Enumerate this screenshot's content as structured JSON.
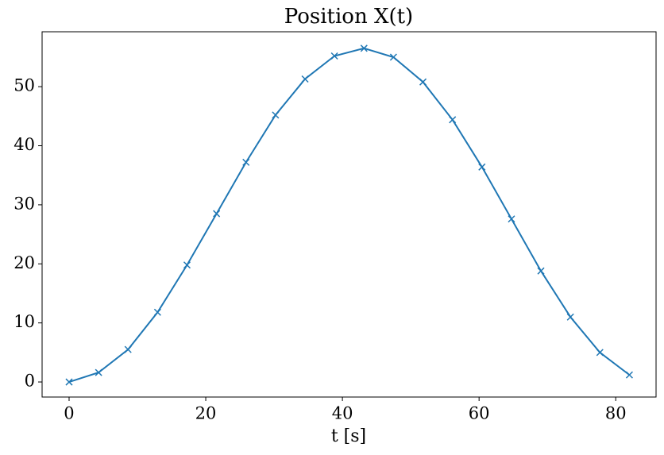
{
  "chart_data": {
    "type": "line",
    "title": "Position X(t)",
    "xlabel": "t [s]",
    "x": [
      0,
      4.32,
      8.63,
      12.95,
      17.26,
      21.58,
      25.89,
      30.21,
      34.53,
      38.84,
      43.16,
      47.47,
      51.79,
      56.11,
      60.42,
      64.74,
      69.05,
      73.37,
      77.68,
      82
    ],
    "series": [
      {
        "color": "#1f77b4",
        "marker": "x",
        "values": [
          0,
          1.6,
          5.5,
          11.8,
          19.8,
          28.5,
          37.2,
          45.2,
          51.3,
          55.2,
          56.5,
          55.0,
          50.8,
          44.4,
          36.4,
          27.6,
          18.8,
          11.0,
          5.0,
          1.2
        ]
      }
    ],
    "xlim": [
      -3.95,
      85.9
    ],
    "xticks": [
      0,
      20,
      40,
      60,
      80
    ],
    "ylim": [
      -2.55,
      59.3
    ],
    "yticks": [
      0,
      10,
      20,
      30,
      40,
      50
    ],
    "grid": false
  }
}
